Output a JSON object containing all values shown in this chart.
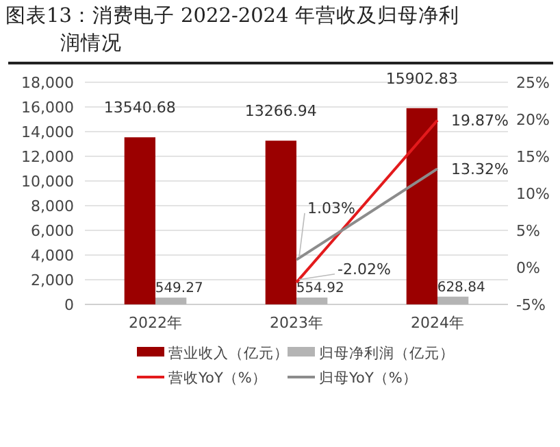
{
  "chart_data": {
    "type": "bar",
    "title": "图表13：消费电子 2022-2024 年营收及归母净利润情况",
    "categories": [
      "2022年",
      "2023年",
      "2024年"
    ],
    "series": [
      {
        "name": "营业收入（亿元）",
        "color": "#9b0000",
        "values": [
          13540.68,
          13266.94,
          15902.83
        ]
      },
      {
        "name": "归母净利润（亿元）",
        "color": "#b4b4b4",
        "values": [
          549.27,
          554.92,
          628.84
        ]
      },
      {
        "name": "营收YoY（%）",
        "type": "line",
        "axis": "y2",
        "color": "#e31a1c",
        "values": [
          null,
          -2.02,
          19.87
        ],
        "value_labels": [
          null,
          "-2.02%",
          "19.87%"
        ]
      },
      {
        "name": "归母YoY（%）",
        "type": "line",
        "axis": "y2",
        "color": "#8c8c8c",
        "values": [
          null,
          1.03,
          13.32
        ],
        "value_labels": [
          null,
          "1.03%",
          "13.32%"
        ]
      }
    ],
    "data_labels": true,
    "ylim": [
      0,
      18000
    ],
    "yticks": [
      {
        "value": 0,
        "label": "0"
      },
      {
        "value": 2000,
        "label": "2,000"
      },
      {
        "value": 4000,
        "label": "4,000"
      },
      {
        "value": 6000,
        "label": "6,000"
      },
      {
        "value": 8000,
        "label": "8,000"
      },
      {
        "value": 10000,
        "label": "10,000"
      },
      {
        "value": 12000,
        "label": "12,000"
      },
      {
        "value": 14000,
        "label": "14,000"
      },
      {
        "value": 16000,
        "label": "16,000"
      },
      {
        "value": 18000,
        "label": "18,000"
      }
    ],
    "y2lim": [
      -5,
      25
    ],
    "y2ticks": [
      {
        "value": -5,
        "label": "-5%"
      },
      {
        "value": 0,
        "label": "0%"
      },
      {
        "value": 5,
        "label": "5%"
      },
      {
        "value": 10,
        "label": "10%"
      },
      {
        "value": 15,
        "label": "15%"
      },
      {
        "value": 20,
        "label": "20%"
      },
      {
        "value": 25,
        "label": "25%"
      }
    ],
    "grid": "y",
    "legend": "bottom"
  }
}
